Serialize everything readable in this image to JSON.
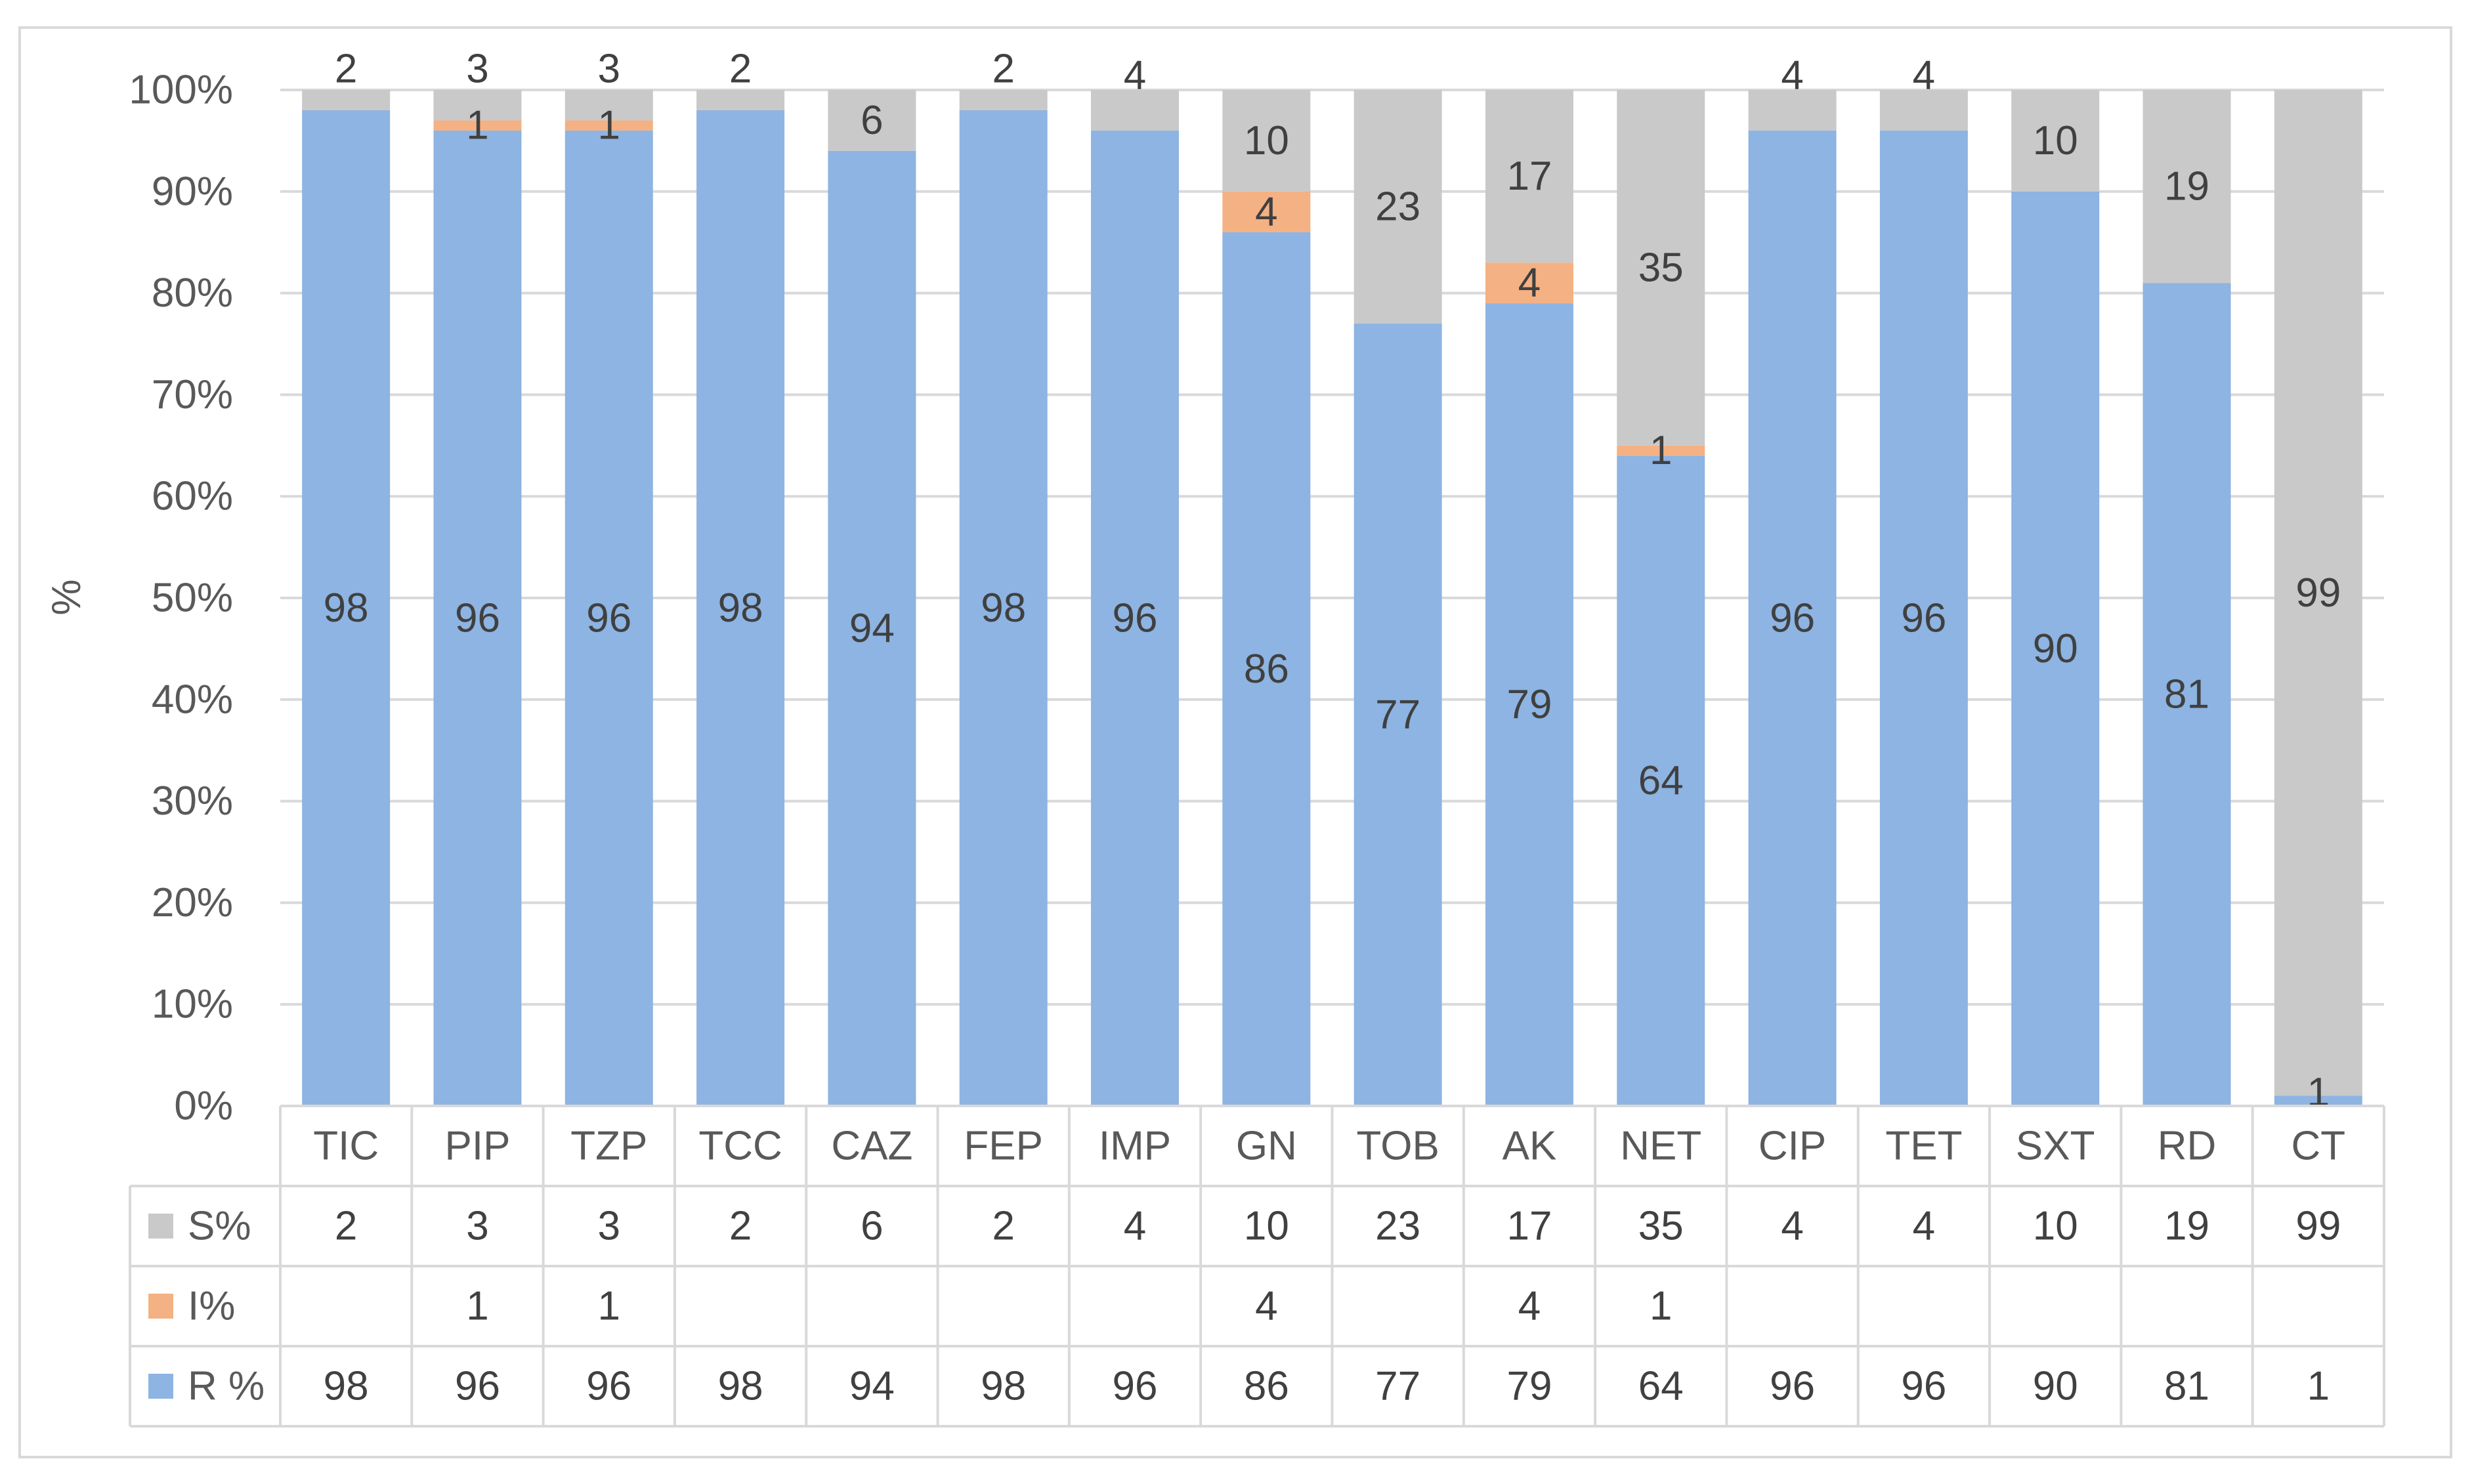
{
  "chart_data": {
    "type": "bar",
    "stacked": "100%",
    "ylabel": "%",
    "ylim": [
      0,
      100
    ],
    "yticks": [
      "0%",
      "10%",
      "20%",
      "30%",
      "40%",
      "50%",
      "60%",
      "70%",
      "80%",
      "90%",
      "100%"
    ],
    "grid": true,
    "legend_placement": "data-table",
    "categories": [
      "TIC",
      "PIP",
      "TZP",
      "TCC",
      "CAZ",
      "FEP",
      "IMP",
      "GN",
      "TOB",
      "AK",
      "NET",
      "CIP",
      "TET",
      "SXT",
      "RD",
      "CT"
    ],
    "series": [
      {
        "name": "R %",
        "color": "#8DB4E2",
        "values": [
          98,
          96,
          96,
          98,
          94,
          98,
          96,
          86,
          77,
          79,
          64,
          96,
          96,
          90,
          81,
          1
        ]
      },
      {
        "name": "I%",
        "color": "#F4B183",
        "values": [
          null,
          1,
          1,
          null,
          null,
          null,
          null,
          4,
          null,
          4,
          1,
          null,
          null,
          null,
          null,
          null
        ]
      },
      {
        "name": "S%",
        "color": "#C9C9C9",
        "values": [
          2,
          3,
          3,
          2,
          6,
          2,
          4,
          10,
          23,
          17,
          35,
          4,
          4,
          10,
          19,
          99
        ]
      }
    ],
    "table_rows_order": [
      "S%",
      "I%",
      "R %"
    ]
  }
}
